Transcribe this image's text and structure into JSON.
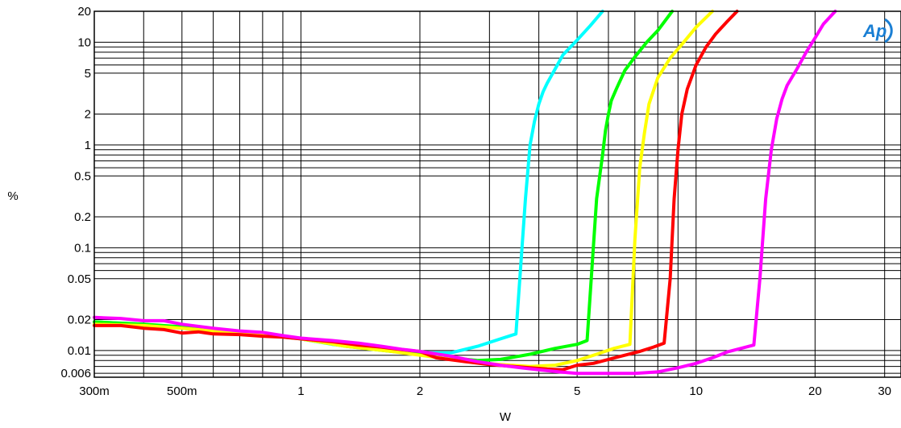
{
  "chart_data": {
    "type": "line",
    "title": "",
    "xlabel": "W",
    "ylabel": "%",
    "x_scale": "log",
    "y_scale": "log",
    "xlim": [
      0.3,
      33
    ],
    "ylim": [
      0.0055,
      20
    ],
    "grid": true,
    "logo": "Ap",
    "x_ticks": [
      {
        "value": 0.3,
        "label": "300m"
      },
      {
        "value": 0.5,
        "label": "500m"
      },
      {
        "value": 1,
        "label": "1"
      },
      {
        "value": 2,
        "label": "2"
      },
      {
        "value": 5,
        "label": "5"
      },
      {
        "value": 10,
        "label": "10"
      },
      {
        "value": 20,
        "label": "20"
      },
      {
        "value": 30,
        "label": "30"
      }
    ],
    "y_ticks": [
      {
        "value": 20,
        "label": "20"
      },
      {
        "value": 10,
        "label": "10"
      },
      {
        "value": 5,
        "label": "5"
      },
      {
        "value": 2,
        "label": "2"
      },
      {
        "value": 1,
        "label": "1"
      },
      {
        "value": 0.5,
        "label": "0.5"
      },
      {
        "value": 0.2,
        "label": "0.2"
      },
      {
        "value": 0.1,
        "label": "0.1"
      },
      {
        "value": 0.05,
        "label": "0.05"
      },
      {
        "value": 0.02,
        "label": "0.02"
      },
      {
        "value": 0.01,
        "label": "0.01"
      },
      {
        "value": 0.006,
        "label": "0.006"
      }
    ],
    "x_grid": [
      0.3,
      0.4,
      0.5,
      0.6,
      0.7,
      0.8,
      0.9,
      1,
      2,
      3,
      4,
      5,
      6,
      7,
      8,
      9,
      10,
      20,
      30
    ],
    "y_grid": [
      20,
      10,
      9,
      8,
      7,
      6,
      5,
      2,
      1,
      0.9,
      0.8,
      0.7,
      0.6,
      0.5,
      0.2,
      0.1,
      0.09,
      0.08,
      0.07,
      0.06,
      0.05,
      0.02,
      0.01,
      0.009,
      0.008,
      0.007,
      0.006
    ],
    "series": [
      {
        "color": "#00ffff",
        "x": [
          0.3,
          0.4,
          0.5,
          0.6,
          0.7,
          0.8,
          1.0,
          1.2,
          1.5,
          2.0,
          2.4,
          2.8,
          3.2,
          3.5,
          3.7,
          3.8,
          3.9,
          4.0,
          4.1,
          4.2,
          4.4,
          4.6,
          5.0,
          5.4,
          5.8
        ],
        "y": [
          0.019,
          0.018,
          0.0165,
          0.0155,
          0.015,
          0.0142,
          0.013,
          0.0115,
          0.0105,
          0.0095,
          0.0095,
          0.011,
          0.013,
          0.0145,
          0.3,
          1.0,
          1.7,
          2.5,
          3.3,
          4.0,
          5.5,
          7.5,
          10.5,
          14.5,
          20
        ]
      },
      {
        "color": "#00ff00",
        "x": [
          0.3,
          0.4,
          0.5,
          0.6,
          0.8,
          1.0,
          1.3,
          1.7,
          2.0,
          2.4,
          2.8,
          3.2,
          3.8,
          4.4,
          5.0,
          5.3,
          5.6,
          5.8,
          5.9,
          6.0,
          6.1,
          6.3,
          6.6,
          7.0,
          7.5,
          8.0,
          8.7
        ],
        "y": [
          0.019,
          0.018,
          0.017,
          0.016,
          0.0148,
          0.013,
          0.011,
          0.0098,
          0.0092,
          0.0085,
          0.008,
          0.0082,
          0.0092,
          0.0105,
          0.0115,
          0.0125,
          0.3,
          0.8,
          1.4,
          2.0,
          2.7,
          3.6,
          5.3,
          7.2,
          10.0,
          13.0,
          20
        ]
      },
      {
        "color": "#ffff00",
        "x": [
          0.3,
          0.4,
          0.5,
          0.6,
          0.8,
          1.0,
          1.3,
          1.7,
          2.0,
          2.4,
          2.8,
          3.2,
          3.8,
          4.4,
          5.0,
          5.6,
          6.2,
          6.8,
          7.0,
          7.2,
          7.4,
          7.6,
          8.0,
          8.6,
          9.3,
          10.0,
          11.0
        ],
        "y": [
          0.018,
          0.0175,
          0.0165,
          0.0155,
          0.0145,
          0.013,
          0.011,
          0.0098,
          0.009,
          0.0082,
          0.0076,
          0.0073,
          0.007,
          0.0072,
          0.008,
          0.0092,
          0.0105,
          0.0115,
          0.12,
          0.6,
          1.3,
          2.5,
          4.5,
          7.0,
          10.0,
          14.0,
          20
        ]
      },
      {
        "color": "#ff0000",
        "x": [
          0.3,
          0.35,
          0.4,
          0.45,
          0.5,
          0.55,
          0.6,
          0.7,
          0.8,
          0.9,
          1.0,
          1.2,
          1.4,
          1.6,
          1.8,
          2.0,
          2.2,
          2.6,
          3.0,
          3.6,
          4.2,
          4.6,
          5.0,
          5.5,
          6.0,
          6.6,
          7.2,
          7.8,
          8.3,
          8.6,
          8.8,
          9.0,
          9.2,
          9.5,
          10.0,
          10.6,
          11.2,
          12.0,
          12.7
        ],
        "y": [
          0.0175,
          0.0175,
          0.0165,
          0.016,
          0.0148,
          0.0152,
          0.0145,
          0.0143,
          0.0138,
          0.0135,
          0.013,
          0.0122,
          0.0113,
          0.0108,
          0.0102,
          0.0098,
          0.0085,
          0.0078,
          0.0073,
          0.0069,
          0.0066,
          0.0065,
          0.0072,
          0.0075,
          0.0082,
          0.009,
          0.0098,
          0.0108,
          0.0118,
          0.05,
          0.3,
          0.9,
          2.0,
          3.5,
          6.0,
          9.0,
          12.0,
          16.0,
          20
        ]
      },
      {
        "color": "#ff00ff",
        "x": [
          0.3,
          0.35,
          0.4,
          0.45,
          0.5,
          0.6,
          0.7,
          0.8,
          0.9,
          1.0,
          1.2,
          1.4,
          1.6,
          1.8,
          2.0,
          2.4,
          2.8,
          3.2,
          3.6,
          4.0,
          4.5,
          5.0,
          5.5,
          6.0,
          7.0,
          8.0,
          9.0,
          10.0,
          11.0,
          12.0,
          13.0,
          14.0,
          14.5,
          15.0,
          15.5,
          16.0,
          16.5,
          17.0,
          18.0,
          19.0,
          20.0,
          21.0,
          22.5
        ],
        "y": [
          0.021,
          0.0205,
          0.0195,
          0.0195,
          0.018,
          0.0165,
          0.0155,
          0.015,
          0.014,
          0.0132,
          0.0125,
          0.0118,
          0.011,
          0.0103,
          0.0098,
          0.0088,
          0.0078,
          0.0072,
          0.0068,
          0.0065,
          0.0062,
          0.006,
          0.006,
          0.006,
          0.006,
          0.0062,
          0.0068,
          0.0075,
          0.0085,
          0.0097,
          0.0105,
          0.0113,
          0.05,
          0.3,
          0.9,
          1.8,
          2.8,
          3.8,
          5.5,
          8.0,
          11.0,
          15.0,
          20
        ]
      }
    ]
  }
}
